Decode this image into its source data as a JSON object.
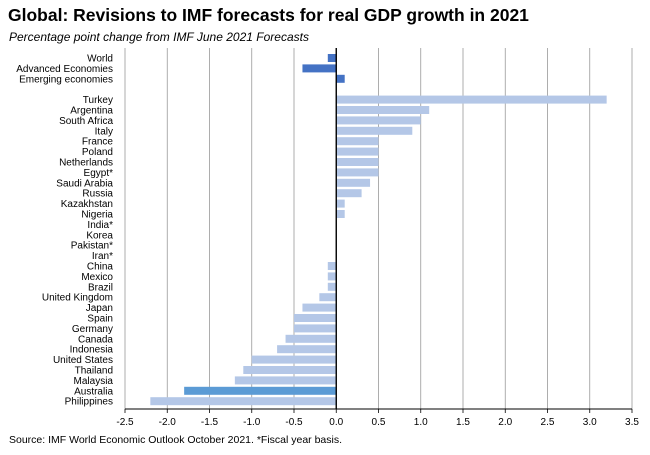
{
  "title": "Global: Revisions to IMF forecasts for real GDP growth in 2021",
  "subtitle": "Percentage point change from IMF June 2021 Forecasts",
  "source": "Source: IMF World Economic Outlook October 2021. *Fiscal year basis.",
  "colors": {
    "aggregate_bar": "#4472c4",
    "country_bar": "#b4c7e7",
    "highlight_bar": "#5b9bd5",
    "grid": "#999999"
  },
  "chart_data": {
    "type": "bar",
    "orientation": "horizontal",
    "title": "Global: Revisions to IMF forecasts for real GDP growth in 2021",
    "subtitle": "Percentage point change from IMF June 2021 Forecasts",
    "xlim": [
      -2.5,
      3.5
    ],
    "x_ticks": [
      "-2.5",
      "-2.0",
      "-1.5",
      "-1.0",
      "-0.5",
      "0.0",
      "0.5",
      "1.0",
      "1.5",
      "2.0",
      "2.5",
      "3.0",
      "3.5"
    ],
    "grid": true,
    "categories": [
      "World",
      "Advanced Economies",
      "Emerging economies",
      "",
      "Turkey",
      "Argentina",
      "South Africa",
      "Italy",
      "France",
      "Poland",
      "Netherlands",
      "Egypt*",
      "Saudi Arabia",
      "Russia",
      "Kazakhstan",
      "Nigeria",
      "India*",
      "Korea",
      "Pakistan*",
      "Iran*",
      "China",
      "Mexico",
      "Brazil",
      "United Kingdom",
      "Japan",
      "Spain",
      "Germany",
      "Canada",
      "Indonesia",
      "United States",
      "Thailand",
      "Malaysia",
      "Australia",
      "Philippines"
    ],
    "values": [
      -0.1,
      -0.4,
      0.1,
      null,
      3.2,
      1.1,
      1.0,
      0.9,
      0.5,
      0.5,
      0.5,
      0.5,
      0.4,
      0.3,
      0.1,
      0.1,
      0.0,
      0.0,
      0.0,
      0.0,
      -0.1,
      -0.1,
      -0.1,
      -0.2,
      -0.4,
      -0.5,
      -0.5,
      -0.6,
      -0.7,
      -1.0,
      -1.1,
      -1.2,
      -1.8,
      -2.2
    ],
    "bar_groups": [
      "aggregate",
      "aggregate",
      "aggregate",
      "none",
      "country",
      "country",
      "country",
      "country",
      "country",
      "country",
      "country",
      "country",
      "country",
      "country",
      "country",
      "country",
      "country",
      "country",
      "country",
      "country",
      "country",
      "country",
      "country",
      "country",
      "country",
      "country",
      "country",
      "country",
      "country",
      "country",
      "country",
      "country",
      "highlight",
      "country"
    ]
  }
}
